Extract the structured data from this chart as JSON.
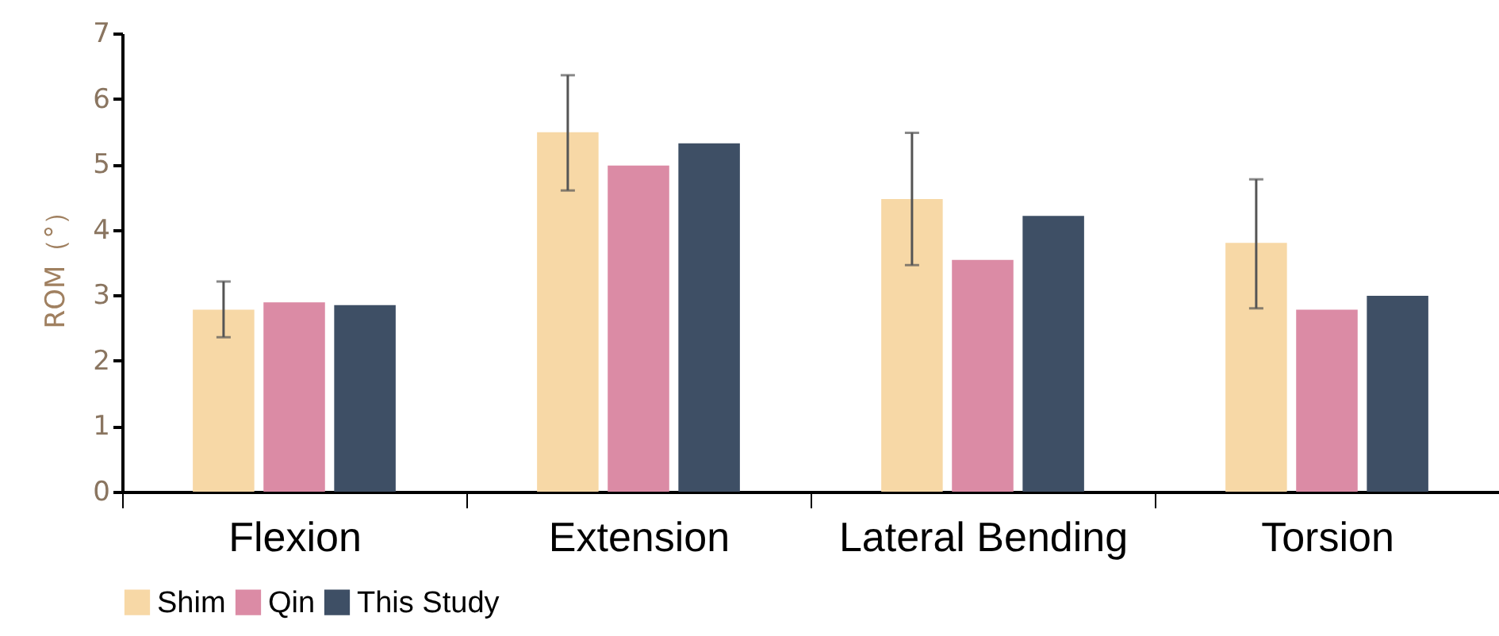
{
  "chart_data": {
    "type": "bar",
    "ylabel": "ROM（°）",
    "categories": [
      "Flexion",
      "Extension",
      "Lateral Bending",
      "Torsion"
    ],
    "series": [
      {
        "name": "Shim",
        "color": "#f7d8a6",
        "values": [
          2.78,
          5.49,
          4.47,
          3.8
        ],
        "errors": [
          [
            2.36,
            3.21
          ],
          [
            4.6,
            6.36
          ],
          [
            3.46,
            5.48
          ],
          [
            2.8,
            4.77
          ]
        ]
      },
      {
        "name": "Qin",
        "color": "#db8ba5",
        "values": [
          2.89,
          4.98,
          3.54,
          2.78
        ]
      },
      {
        "name": "This Study",
        "color": "#3e4f65",
        "values": [
          2.85,
          5.32,
          4.21,
          2.99
        ]
      }
    ],
    "ylim": [
      0,
      7
    ],
    "yticks": [
      0,
      1,
      2,
      3,
      4,
      5,
      6,
      7
    ],
    "grid": false,
    "legend": "bottom"
  }
}
